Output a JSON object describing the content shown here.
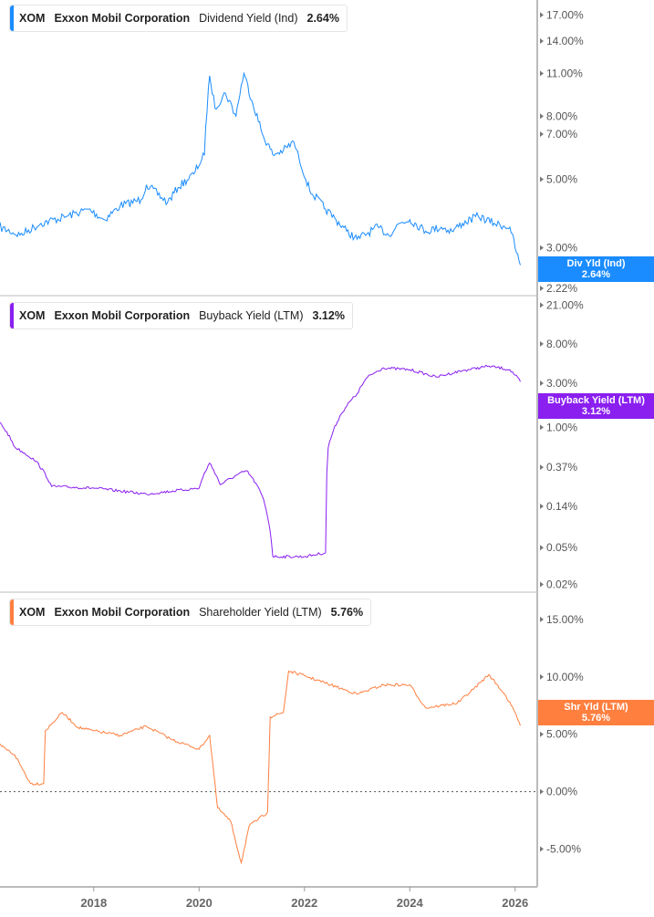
{
  "chart_data": [
    {
      "type": "line",
      "legend": {
        "ticker": "XOM",
        "company": "Exxon Mobil Corporation",
        "metric": "Dividend Yield (Ind)",
        "value": "2.64%"
      },
      "tag": {
        "label": "Div Yld (Ind)",
        "value": "2.64%"
      },
      "color": "#1a8cff",
      "scale": "log",
      "yticks": [
        17,
        14,
        11,
        8,
        7,
        5,
        3,
        2.22
      ],
      "ytick_labels": [
        "17.00%",
        "14.00%",
        "11.00%",
        "8.00%",
        "7.00%",
        "5.00%",
        "3.00%",
        "2.22%"
      ],
      "ylim": [
        2.22,
        19
      ],
      "points": [
        [
          2016.2,
          3.5
        ],
        [
          2016.6,
          3.3
        ],
        [
          2017.0,
          3.6
        ],
        [
          2017.5,
          3.8
        ],
        [
          2017.9,
          4.0
        ],
        [
          2018.2,
          3.7
        ],
        [
          2018.5,
          4.1
        ],
        [
          2018.9,
          4.3
        ],
        [
          2019.0,
          4.8
        ],
        [
          2019.4,
          4.2
        ],
        [
          2019.6,
          4.7
        ],
        [
          2019.9,
          5.2
        ],
        [
          2020.1,
          6.0
        ],
        [
          2020.2,
          10.8
        ],
        [
          2020.3,
          8.5
        ],
        [
          2020.5,
          9.5
        ],
        [
          2020.7,
          8.0
        ],
        [
          2020.85,
          11.0
        ],
        [
          2021.0,
          9.0
        ],
        [
          2021.2,
          7.0
        ],
        [
          2021.4,
          6.0
        ],
        [
          2021.6,
          6.2
        ],
        [
          2021.8,
          6.6
        ],
        [
          2021.9,
          5.8
        ],
        [
          2022.1,
          4.6
        ],
        [
          2022.4,
          4.0
        ],
        [
          2022.6,
          3.7
        ],
        [
          2022.8,
          3.4
        ],
        [
          2023.0,
          3.2
        ],
        [
          2023.4,
          3.5
        ],
        [
          2023.6,
          3.3
        ],
        [
          2023.8,
          3.6
        ],
        [
          2024.0,
          3.7
        ],
        [
          2024.3,
          3.4
        ],
        [
          2024.6,
          3.5
        ],
        [
          2024.8,
          3.4
        ],
        [
          2025.0,
          3.6
        ],
        [
          2025.3,
          3.8
        ],
        [
          2025.6,
          3.6
        ],
        [
          2025.9,
          3.5
        ],
        [
          2026.0,
          3.0
        ],
        [
          2026.1,
          2.64
        ]
      ]
    },
    {
      "type": "line",
      "legend": {
        "ticker": "XOM",
        "company": "Exxon Mobil Corporation",
        "metric": "Buyback Yield (LTM)",
        "value": "3.12%"
      },
      "tag": {
        "label": "Buyback Yield (LTM)",
        "value": "3.12%"
      },
      "color": "#8a1ff0",
      "scale": "log",
      "yticks": [
        21,
        8,
        3,
        1,
        0.37,
        0.14,
        0.05,
        0.02
      ],
      "ytick_labels": [
        "21.00%",
        "8.00%",
        "3.00%",
        "1.00%",
        "0.37%",
        "0.14%",
        "0.05%",
        "0.02%"
      ],
      "ylim": [
        0.0165,
        26
      ],
      "points": [
        [
          2016.2,
          1.15
        ],
        [
          2016.5,
          0.61
        ],
        [
          2016.9,
          0.43
        ],
        [
          2017.2,
          0.23
        ],
        [
          2018.0,
          0.22
        ],
        [
          2019.0,
          0.19
        ],
        [
          2020.0,
          0.22
        ],
        [
          2020.2,
          0.41
        ],
        [
          2020.4,
          0.24
        ],
        [
          2020.9,
          0.34
        ],
        [
          2021.2,
          0.18
        ],
        [
          2021.4,
          0.04
        ],
        [
          2022.0,
          0.04
        ],
        [
          2022.4,
          0.044
        ],
        [
          2022.45,
          0.6
        ],
        [
          2022.7,
          1.4
        ],
        [
          2023.0,
          2.3
        ],
        [
          2023.2,
          3.5
        ],
        [
          2023.5,
          4.4
        ],
        [
          2024.0,
          4.2
        ],
        [
          2024.5,
          3.5
        ],
        [
          2025.0,
          4.1
        ],
        [
          2025.5,
          4.6
        ],
        [
          2025.9,
          4.2
        ],
        [
          2026.1,
          3.12
        ]
      ]
    },
    {
      "type": "line",
      "legend": {
        "ticker": "XOM",
        "company": "Exxon Mobil Corporation",
        "metric": "Shareholder Yield (LTM)",
        "value": "5.76%"
      },
      "tag": {
        "label": "Shr Yld (LTM)",
        "value": "5.76%"
      },
      "color": "#ff7f3f",
      "scale": "linear",
      "yticks": [
        15,
        10,
        5,
        0,
        -5
      ],
      "ytick_labels": [
        "15.00%",
        "10.00%",
        "5.00%",
        "0.00%",
        "-5.00%"
      ],
      "ylim": [
        -8.3,
        17.3
      ],
      "points": [
        [
          2016.2,
          4.1
        ],
        [
          2016.5,
          3.2
        ],
        [
          2016.8,
          0.7
        ],
        [
          2017.05,
          0.7
        ],
        [
          2017.08,
          5.3
        ],
        [
          2017.4,
          6.9
        ],
        [
          2017.7,
          5.6
        ],
        [
          2018.0,
          5.3
        ],
        [
          2018.5,
          4.9
        ],
        [
          2019.0,
          5.7
        ],
        [
          2019.5,
          4.5
        ],
        [
          2020.0,
          3.7
        ],
        [
          2020.2,
          4.9
        ],
        [
          2020.35,
          -1.4
        ],
        [
          2020.6,
          -2.6
        ],
        [
          2020.8,
          -6.2
        ],
        [
          2020.95,
          -3.0
        ],
        [
          2021.3,
          -1.8
        ],
        [
          2021.35,
          6.5
        ],
        [
          2021.6,
          6.9
        ],
        [
          2021.7,
          10.5
        ],
        [
          2022.0,
          10.1
        ],
        [
          2022.5,
          9.3
        ],
        [
          2023.0,
          8.5
        ],
        [
          2023.5,
          9.3
        ],
        [
          2024.0,
          9.3
        ],
        [
          2024.3,
          7.3
        ],
        [
          2024.9,
          7.7
        ],
        [
          2025.2,
          8.9
        ],
        [
          2025.5,
          10.2
        ],
        [
          2025.8,
          8.5
        ],
        [
          2026.0,
          6.9
        ],
        [
          2026.1,
          5.76
        ]
      ]
    }
  ],
  "x_axis": {
    "ticks": [
      2018,
      2020,
      2022,
      2024,
      2026
    ],
    "labels": [
      "2018",
      "2020",
      "2022",
      "2024",
      "2026"
    ],
    "xlim": [
      2016.22,
      2026.42
    ]
  }
}
